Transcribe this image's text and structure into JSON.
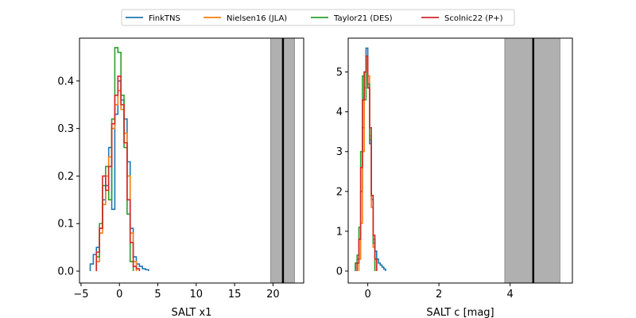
{
  "legend": {
    "placement": "top-center",
    "entries": [
      {
        "label": "FinkTNS",
        "color": "#1f77b4"
      },
      {
        "label": "Nielsen16 (JLA)",
        "color": "#ff7f0e"
      },
      {
        "label": "Taylor21 (DES)",
        "color": "#2ca02c"
      },
      {
        "label": "Scolnic22 (P+)",
        "color": "#d62728"
      }
    ]
  },
  "chart_data": [
    {
      "type": "step-histogram",
      "xlabel": "SALT x1",
      "ylabel": "",
      "xlim": [
        -5.2,
        24.0
      ],
      "ylim": [
        -0.025,
        0.49
      ],
      "xticks": [
        -5,
        0,
        5,
        10,
        15,
        20
      ],
      "xtick_labels": [
        "−5",
        "0",
        "5",
        "10",
        "15",
        "20"
      ],
      "yticks": [
        0.0,
        0.1,
        0.2,
        0.3,
        0.4
      ],
      "ytick_labels": [
        "0.0",
        "0.1",
        "0.2",
        "0.3",
        "0.4"
      ],
      "shaded_band": {
        "x0": 19.7,
        "x1": 22.8,
        "color": "#b0b0b0"
      },
      "vline": {
        "x": 21.3,
        "color": "#000000"
      },
      "series": [
        {
          "name": "FinkTNS",
          "color": "#1f77b4",
          "edges": [
            -3.8,
            -3.4,
            -3.0,
            -2.6,
            -2.2,
            -1.8,
            -1.4,
            -1.0,
            -0.6,
            -0.2,
            0.2,
            0.6,
            1.0,
            1.4,
            1.8,
            2.2,
            2.6,
            3.0,
            3.4,
            3.8
          ],
          "values": [
            0.015,
            0.035,
            0.05,
            0.09,
            0.15,
            0.18,
            0.26,
            0.13,
            0.33,
            0.4,
            0.36,
            0.32,
            0.23,
            0.09,
            0.03,
            0.015,
            0.01,
            0.005,
            0.003
          ]
        },
        {
          "name": "Nielsen16 (JLA)",
          "color": "#ff7f0e",
          "edges": [
            -3.0,
            -2.6,
            -2.2,
            -1.8,
            -1.4,
            -1.0,
            -0.6,
            -0.2,
            0.2,
            0.6,
            1.0,
            1.4,
            1.8,
            2.2
          ],
          "values": [
            0.02,
            0.08,
            0.14,
            0.2,
            0.24,
            0.3,
            0.35,
            0.38,
            0.34,
            0.29,
            0.2,
            0.08,
            0.02
          ]
        },
        {
          "name": "Taylor21 (DES)",
          "color": "#2ca02c",
          "edges": [
            -3.0,
            -2.6,
            -2.2,
            -1.8,
            -1.4,
            -1.0,
            -0.6,
            -0.2,
            0.2,
            0.6,
            1.0,
            1.4,
            1.8
          ],
          "values": [
            0.03,
            0.1,
            0.18,
            0.22,
            0.15,
            0.32,
            0.47,
            0.46,
            0.37,
            0.26,
            0.12,
            0.02
          ]
        },
        {
          "name": "Scolnic22 (P+)",
          "color": "#d62728",
          "edges": [
            -3.0,
            -2.6,
            -2.2,
            -1.8,
            -1.4,
            -1.0,
            -0.6,
            -0.2,
            0.2,
            0.6,
            1.0,
            1.4,
            1.8,
            2.2,
            2.6
          ],
          "values": [
            0.04,
            0.09,
            0.2,
            0.17,
            0.22,
            0.31,
            0.37,
            0.41,
            0.35,
            0.27,
            0.15,
            0.06,
            0.01,
            0.005
          ]
        }
      ]
    },
    {
      "type": "step-histogram",
      "xlabel": "SALT c [mag]",
      "ylabel": "",
      "xlim": [
        -0.55,
        5.75
      ],
      "ylim": [
        -0.3,
        5.85
      ],
      "xticks": [
        0,
        2,
        4
      ],
      "xtick_labels": [
        "0",
        "2",
        "4"
      ],
      "yticks": [
        0,
        1,
        2,
        3,
        4,
        5
      ],
      "ytick_labels": [
        "0",
        "1",
        "2",
        "3",
        "4",
        "5"
      ],
      "shaded_band": {
        "x0": 3.85,
        "x1": 5.4,
        "color": "#b0b0b0"
      },
      "vline": {
        "x": 4.65,
        "color": "#000000"
      },
      "series": [
        {
          "name": "FinkTNS",
          "color": "#1f77b4",
          "edges": [
            -0.35,
            -0.3,
            -0.25,
            -0.2,
            -0.15,
            -0.1,
            -0.05,
            0.0,
            0.05,
            0.1,
            0.15,
            0.2,
            0.25,
            0.3,
            0.35,
            0.4,
            0.45,
            0.5
          ],
          "values": [
            0.2,
            0.3,
            0.8,
            2.0,
            3.6,
            5.0,
            5.6,
            4.6,
            3.2,
            1.8,
            0.8,
            0.5,
            0.3,
            0.2,
            0.15,
            0.1,
            0.05
          ]
        },
        {
          "name": "Nielsen16 (JLA)",
          "color": "#ff7f0e",
          "edges": [
            -0.25,
            -0.2,
            -0.15,
            -0.1,
            -0.05,
            0.0,
            0.05,
            0.1,
            0.15,
            0.2
          ],
          "values": [
            0.3,
            1.2,
            3.0,
            4.6,
            5.3,
            4.9,
            3.4,
            1.6,
            0.6
          ]
        },
        {
          "name": "Taylor21 (DES)",
          "color": "#2ca02c",
          "edges": [
            -0.35,
            -0.3,
            -0.25,
            -0.2,
            -0.15,
            -0.1,
            -0.05,
            0.0,
            0.05,
            0.1,
            0.15,
            0.2
          ],
          "values": [
            0.2,
            0.4,
            1.1,
            3.0,
            4.9,
            4.3,
            5.4,
            4.7,
            3.3,
            1.9,
            0.7
          ]
        },
        {
          "name": "Scolnic22 (P+)",
          "color": "#d62728",
          "edges": [
            -0.3,
            -0.25,
            -0.2,
            -0.15,
            -0.1,
            -0.05,
            0.0,
            0.05,
            0.1,
            0.15,
            0.2,
            0.25
          ],
          "values": [
            0.2,
            0.8,
            2.6,
            4.3,
            5.0,
            5.4,
            4.6,
            3.6,
            1.9,
            0.9,
            0.3
          ]
        }
      ]
    }
  ]
}
